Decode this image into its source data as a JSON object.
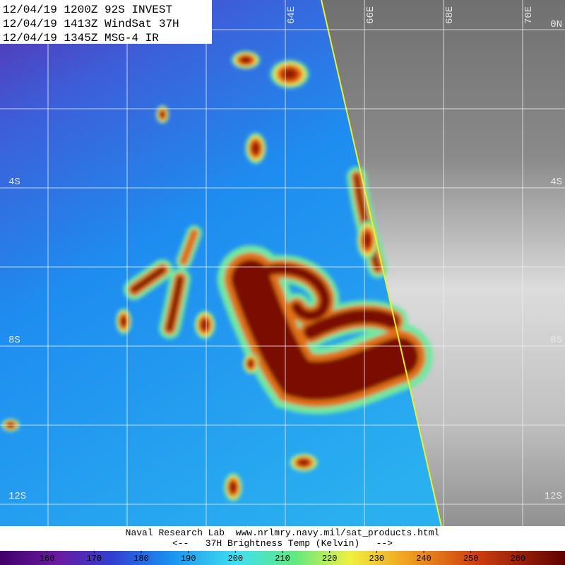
{
  "header": {
    "lines": [
      "12/04/19 1200Z 92S INVEST",
      "12/04/19 1413Z WindSat 37H",
      "12/04/19 1345Z MSG-4 IR"
    ]
  },
  "map": {
    "lon_labels": [
      "64E",
      "66E",
      "68E",
      "70E"
    ],
    "lat_labels_left": [
      "4S",
      "8S",
      "12S"
    ],
    "lat_labels_right": [
      "0N",
      "4S",
      "8S",
      "12S"
    ]
  },
  "footer": {
    "lines": [
      "Naval Research Lab  www.nrlmry.navy.mil/sat_products.html",
      "<--   37H Brightness Temp (Kelvin)   -->"
    ]
  },
  "colorbar": {
    "range": [
      150,
      270
    ],
    "ticks": [
      160,
      170,
      180,
      190,
      200,
      210,
      220,
      230,
      240,
      250,
      260
    ]
  }
}
